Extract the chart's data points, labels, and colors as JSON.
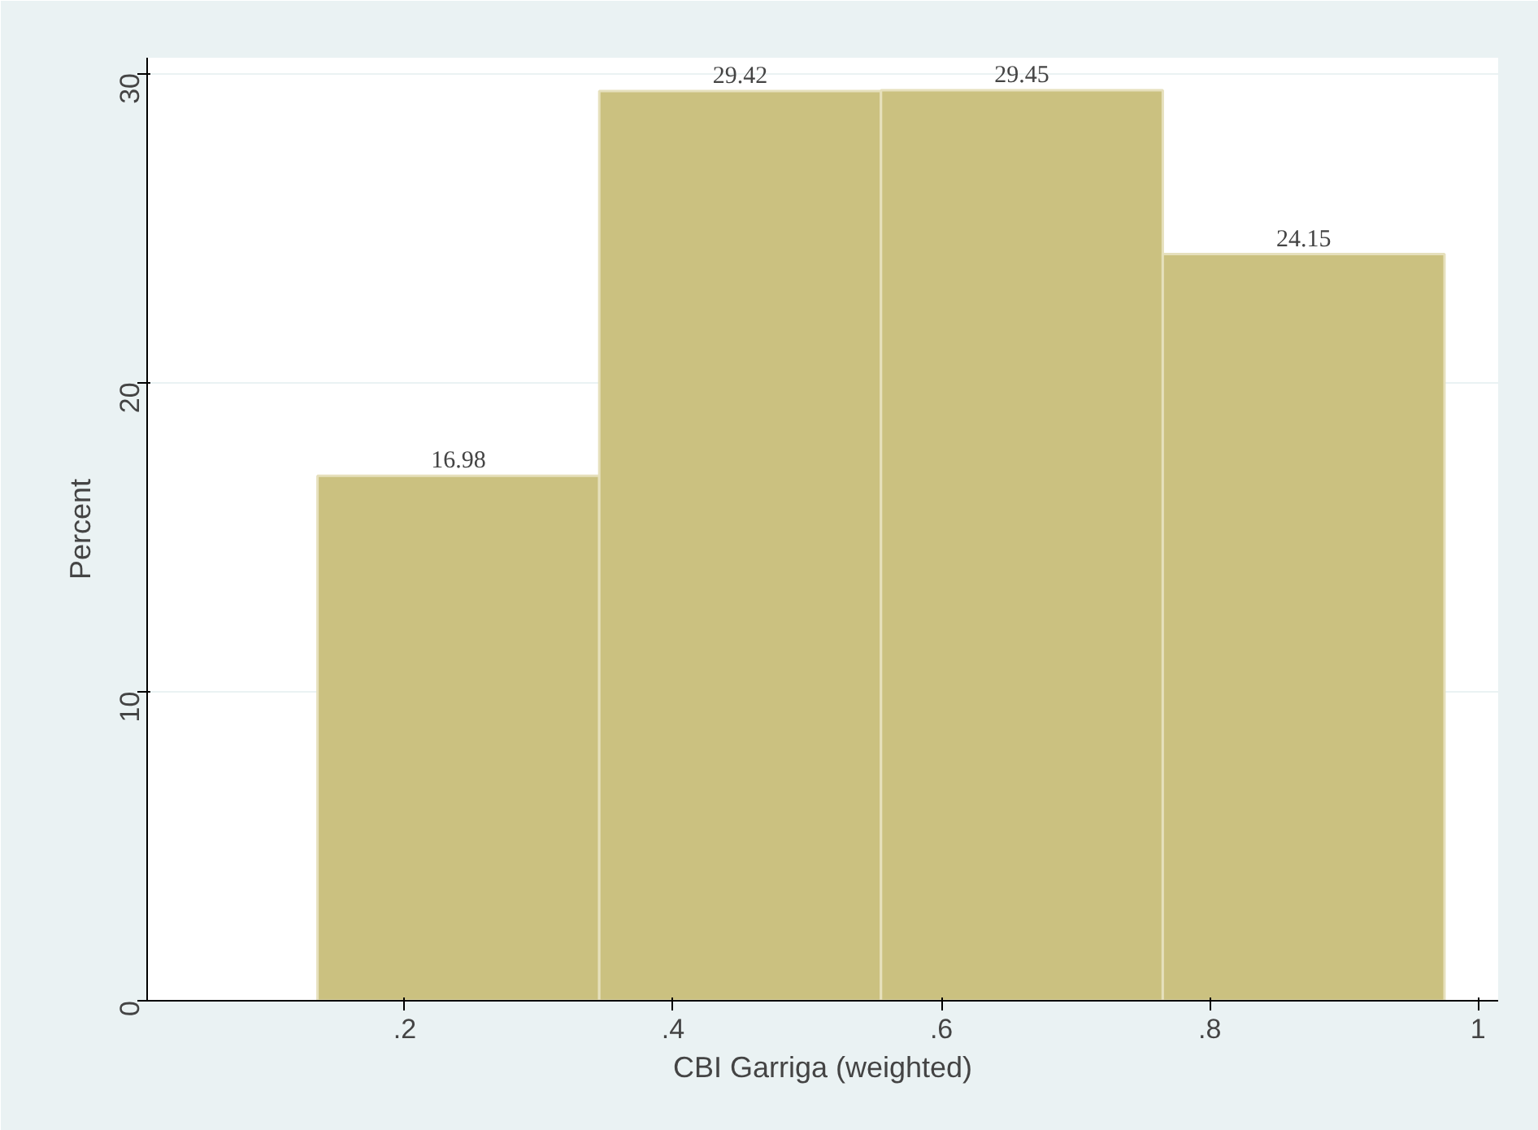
{
  "chart_data": {
    "type": "histogram",
    "xlabel": "CBI Garriga (weighted)",
    "ylabel": "Percent",
    "bins": [
      0.135,
      0.345,
      0.555,
      0.765,
      0.975
    ],
    "values": [
      16.98,
      29.42,
      29.45,
      24.15
    ],
    "color": "#cbc180",
    "data_labels": true,
    "grid": "y",
    "xlim": [
      0.008,
      1.015
    ],
    "ylim": [
      0,
      30.5
    ],
    "xticks": [
      {
        "value": 0.2,
        "label": ".2"
      },
      {
        "value": 0.4,
        "label": ".4"
      },
      {
        "value": 0.6,
        "label": ".6"
      },
      {
        "value": 0.8,
        "label": ".8"
      },
      1
    ],
    "yticks": [
      0,
      10,
      20,
      30
    ]
  }
}
